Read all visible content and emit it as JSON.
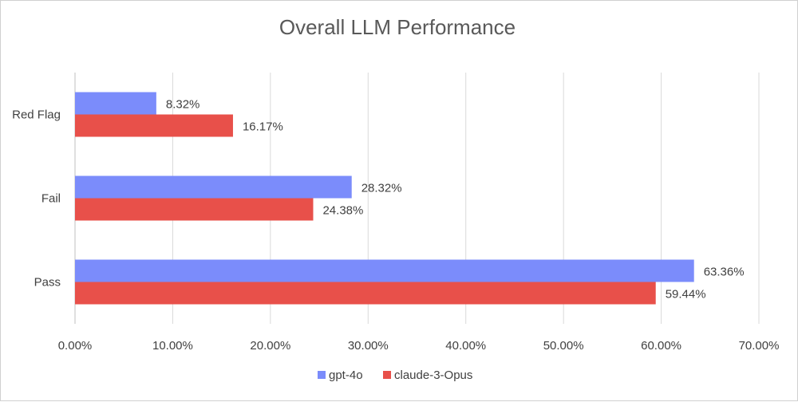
{
  "chart_data": {
    "type": "bar",
    "orientation": "horizontal",
    "title": "Overall LLM Performance",
    "categories": [
      "Red Flag",
      "Fail",
      "Pass"
    ],
    "series": [
      {
        "name": "gpt-4o",
        "color": "#7b8cfb",
        "values": [
          8.32,
          28.32,
          63.36
        ],
        "labels": [
          "8.32%",
          "28.32%",
          "63.36%"
        ]
      },
      {
        "name": "claude-3-Opus",
        "color": "#e8504a",
        "values": [
          16.17,
          24.38,
          59.44
        ],
        "labels": [
          "16.17%",
          "24.38%",
          "59.44%"
        ]
      }
    ],
    "xlim": [
      0,
      70
    ],
    "x_ticks": [
      "0.00%",
      "10.00%",
      "20.00%",
      "30.00%",
      "40.00%",
      "50.00%",
      "60.00%",
      "70.00%"
    ],
    "gridlines": true,
    "legend_position": "bottom"
  }
}
